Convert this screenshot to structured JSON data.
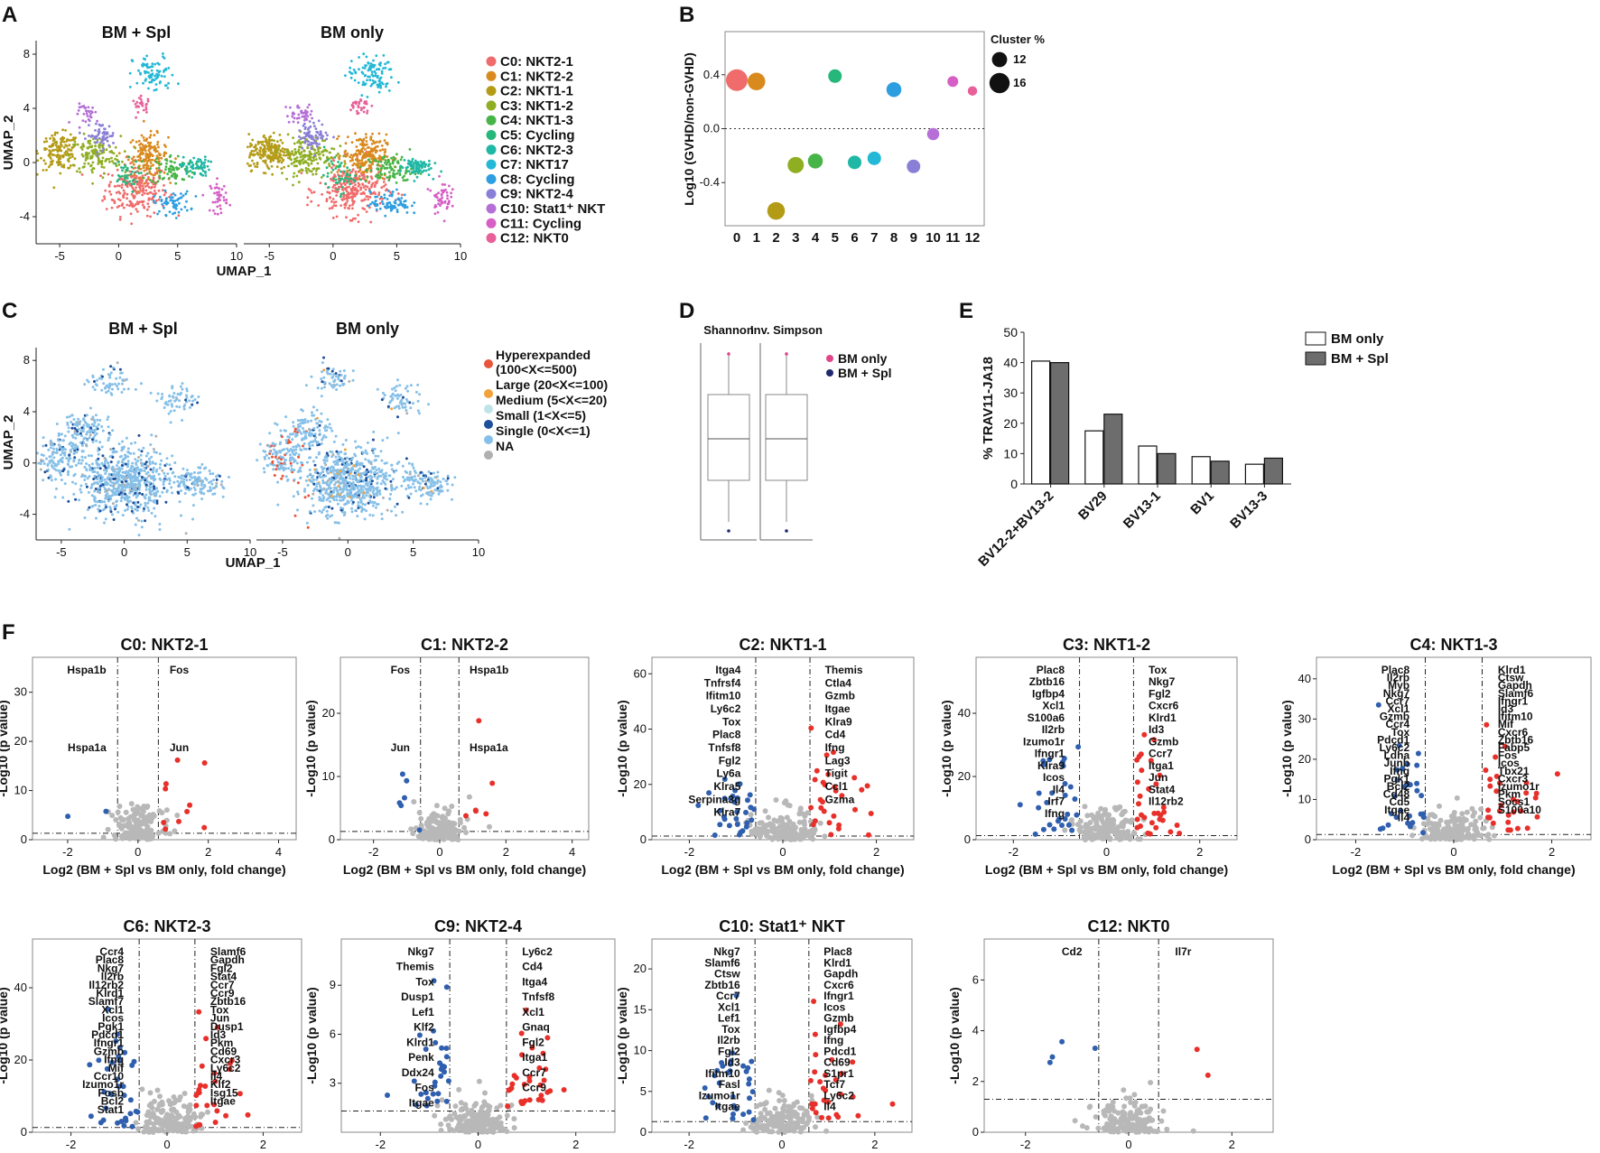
{
  "figure": {
    "panel_letters": [
      "A",
      "B",
      "C",
      "D",
      "E",
      "F"
    ]
  },
  "chart_data": [
    {
      "id": "A",
      "type": "scatter",
      "subtitles": [
        "BM + Spl",
        "BM only"
      ],
      "xlabel": "UMAP_1",
      "ylabel": "UMAP_2",
      "xticks": [
        -5,
        0,
        5,
        10
      ],
      "yticks": [
        8,
        4,
        0,
        -4
      ],
      "xlim": [
        -7,
        10
      ],
      "ylim": [
        -6,
        9
      ],
      "legend": [
        {
          "label": "C0: NKT2-1",
          "color": "#f06b6b"
        },
        {
          "label": "C1: NKT2-2",
          "color": "#d98a1f"
        },
        {
          "label": "C2: NKT1-1",
          "color": "#b49b16"
        },
        {
          "label": "C3: NKT1-2",
          "color": "#8fae22"
        },
        {
          "label": "C4: NKT1-3",
          "color": "#46b446"
        },
        {
          "label": "C5: Cycling",
          "color": "#26b77a"
        },
        {
          "label": "C6: NKT2-3",
          "color": "#1fb7a5"
        },
        {
          "label": "C7: NKT17",
          "color": "#22b8d6"
        },
        {
          "label": "C8: Cycling",
          "color": "#2d9ee0"
        },
        {
          "label": "C9: NKT2-4",
          "color": "#8a7fd6"
        },
        {
          "label": "C10: Stat1⁺ NKT",
          "color": "#b56fd6"
        },
        {
          "label": "C11: Cycling",
          "color": "#d65fc6"
        },
        {
          "label": "C12: NKT0",
          "color": "#e8609a"
        }
      ]
    },
    {
      "id": "B",
      "type": "scatter",
      "ylabel": "Log10 (GVHD/non-GVHD)",
      "categories": [
        "0",
        "1",
        "2",
        "3",
        "4",
        "5",
        "6",
        "7",
        "8",
        "9",
        "10",
        "11",
        "12"
      ],
      "values": [
        0.36,
        0.35,
        -0.61,
        -0.27,
        -0.24,
        0.39,
        -0.25,
        -0.22,
        0.29,
        -0.28,
        -0.04,
        0.35,
        0.28
      ],
      "sizes": [
        16,
        13,
        13,
        12,
        11,
        10,
        10,
        10,
        11,
        10,
        9,
        8,
        7
      ],
      "colors": [
        "#f06b6b",
        "#d98a1f",
        "#b49b16",
        "#8fae22",
        "#46b446",
        "#26b77a",
        "#1fb7a5",
        "#22b8d6",
        "#2d9ee0",
        "#8a7fd6",
        "#b56fd6",
        "#d65fc6",
        "#e8609a"
      ],
      "yticks": [
        0.4,
        0.0,
        -0.4
      ],
      "ylim": [
        -0.72,
        0.72
      ],
      "size_legend_title": "Cluster %",
      "size_legend": [
        12,
        16
      ]
    },
    {
      "id": "C",
      "type": "scatter",
      "subtitles": [
        "BM  + Spl",
        "BM only"
      ],
      "xlabel": "UMAP_1",
      "ylabel": "UMAP_2",
      "xticks": [
        -5,
        0,
        5,
        10
      ],
      "yticks": [
        8,
        4,
        0,
        -4
      ],
      "legend": [
        {
          "label": "Hyperexpanded",
          "sub": "(100<X<=500)",
          "color": "#e8553a"
        },
        {
          "label": "Large (20<X<=100)",
          "color": "#f2a23a"
        },
        {
          "label": "Medium (5<X<=20)",
          "color": "#bfe3e8"
        },
        {
          "label": "Small (1<X<=5)",
          "color": "#1d4f9a"
        },
        {
          "label": "Single (0<X<=1)",
          "color": "#86c0e8"
        },
        {
          "label": "NA",
          "color": "#b0b0b0"
        }
      ]
    },
    {
      "id": "D",
      "type": "box",
      "groups": [
        "Shannon",
        "Inv. Simpson"
      ],
      "legend": [
        {
          "label": "BM only",
          "color": "#e0478a"
        },
        {
          "label": "BM + Spl",
          "color": "#1f2a6e"
        }
      ]
    },
    {
      "id": "E",
      "type": "bar",
      "ylabel": "% TRAV11-JA18",
      "categories": [
        "BV12-2+BV13-2",
        "BV29",
        "BV13-1",
        "BV1",
        "BV13-3"
      ],
      "series": [
        {
          "name": "BM only",
          "values": [
            40.5,
            17.5,
            12.5,
            9.0,
            6.5
          ],
          "color": "#ffffff"
        },
        {
          "name": "BM + Spl",
          "values": [
            40,
            23,
            10,
            7.5,
            8.5
          ],
          "color": "#6d6d6d"
        }
      ],
      "yticks": [
        0,
        10,
        20,
        30,
        40,
        50
      ],
      "ylim": [
        0,
        50
      ]
    },
    {
      "id": "F",
      "type": "scatter",
      "xlabel": "Log2 (BM + Spl vs BM only, fold change)",
      "ylabel": "-Log10 (p value)",
      "panels": [
        {
          "title": "C0: NKT2-1",
          "xticks": [
            -2,
            0,
            2,
            4
          ],
          "yticks": [
            0,
            10,
            20,
            30
          ],
          "ymax": 36,
          "labels": [
            "Hspa1b",
            "Fos",
            "Hspa1a",
            "Jun"
          ]
        },
        {
          "title": "C1: NKT2-2",
          "xticks": [
            -2,
            0,
            2,
            4
          ],
          "yticks": [
            0,
            10,
            20
          ],
          "ymax": 28,
          "labels": [
            "Fos",
            "Hspa1b",
            "Jun",
            "Hspa1a"
          ]
        },
        {
          "title": "C2: NKT1-1",
          "xticks": [
            -2,
            0,
            2
          ],
          "yticks": [
            0,
            20,
            40,
            60
          ],
          "ymax": 64,
          "labels": [
            "Itga4",
            "Themis",
            "Tnfrsf4",
            "Ctla4",
            "Ifitm10",
            "Gzmb",
            "Ly6c2",
            "Itgae",
            "Tox",
            "Klra9",
            "Plac8",
            "Cd4",
            "Tnfsf8",
            "Ifng",
            "Fgl2",
            "Lag3",
            "Ly6a",
            "Tigit",
            "Klra5",
            "Ccl1",
            "Serpina3g",
            "Gzma",
            "Klra7"
          ]
        },
        {
          "title": "C3: NKT1-2",
          "xticks": [
            -2,
            0,
            2
          ],
          "yticks": [
            0,
            20,
            40
          ],
          "ymax": 56,
          "labels": [
            "Plac8",
            "Tox",
            "Zbtb16",
            "Nkg7",
            "Igfbp4",
            "Fgl2",
            "Xcl1",
            "Cxcr6",
            "S100a6",
            "Klrd1",
            "Il2rb",
            "Id3",
            "Izumo1r",
            "Gzmb",
            "Ifngr1",
            "Ccr7",
            "Klra9",
            "Itga1",
            "Icos",
            "Jun",
            "Il4",
            "Stat4",
            "Irf7",
            "Il12rb2",
            "Ifng"
          ]
        },
        {
          "title": "C4: NKT1-3",
          "xticks": [
            -2,
            0,
            2
          ],
          "yticks": [
            0,
            10,
            20,
            30,
            40
          ],
          "ymax": 44,
          "labels": [
            "Plac8",
            "Klrd1",
            "Il2rb",
            "Ctsw",
            "Myb",
            "Gapdh",
            "Nkg7",
            "Slamf6",
            "Ccr7",
            "Ifngr1",
            "Xcl1",
            "Id3",
            "Gzmb",
            "Ifitm10",
            "Ccr4",
            "Mif",
            "Tox",
            "Cxcr6",
            "Pdcd1",
            "Zbtb16",
            "Ly6c2",
            "Fabp5",
            "Ldha",
            "Fos",
            "Junb",
            "Icos",
            "Ifng",
            "Tbx21",
            "Pgk1",
            "Cxcr3",
            "Bcl2",
            "Izumo1r",
            "Cd48",
            "Pkm",
            "Cd5",
            "Socs1",
            "Itgae",
            "S100a10",
            "Il4"
          ]
        },
        {
          "title": "C6: NKT2-3",
          "xticks": [
            -2,
            0,
            2
          ],
          "yticks": [
            0,
            20,
            40
          ],
          "ymax": 52,
          "labels": [
            "Ccr4",
            "Slamf6",
            "Plac8",
            "Gapdh",
            "Nkg7",
            "Fgl2",
            "Il2rb",
            "Stat4",
            "Il12rb2",
            "Ccr7",
            "Klrd1",
            "Ccr9",
            "Slamf7",
            "Zbtb16",
            "Xcl1",
            "Tox",
            "Icos",
            "Jun",
            "Pgk1",
            "Dusp1",
            "Pdcd1",
            "Id3",
            "Ifngr1",
            "Pkm",
            "Gzmb",
            "Cd69",
            "Ifng",
            "Cxcr3",
            "Mif",
            "Ly6c2",
            "Ccr10",
            "Il4",
            "Izumo1r",
            "Klf2",
            "Fosb",
            "Isg15",
            "Bcl2",
            "Itgae",
            "Stat1"
          ]
        },
        {
          "title": "C9: NKT2-4",
          "xticks": [
            -2,
            0,
            2
          ],
          "yticks": [
            3,
            6,
            9
          ],
          "ymax": 11.5,
          "labels": [
            "Nkg7",
            "Ly6c2",
            "Themis",
            "Cd4",
            "Tox",
            "Itga4",
            "Dusp1",
            "Tnfsf8",
            "Lef1",
            "Xcl1",
            "Klf2",
            "Gnaq",
            "Klrd1",
            "Fgl2",
            "Penk",
            "Itga1",
            "Ddx24",
            "Ccr7",
            "Fos",
            "Ccr9",
            "Itgae"
          ]
        },
        {
          "title": "C10: Stat1⁺ NKT",
          "xticks": [
            -2,
            0,
            2
          ],
          "yticks": [
            0,
            5,
            10,
            15,
            20
          ],
          "ymax": 23,
          "labels": [
            "Nkg7",
            "Plac8",
            "Slamf6",
            "Klrd1",
            "Ctsw",
            "Gapdh",
            "Zbtb16",
            "Cxcr6",
            "Ccr7",
            "Ifngr1",
            "Xcl1",
            "Icos",
            "Lef1",
            "Gzmb",
            "Tox",
            "Igfbp4",
            "Il2rb",
            "Ifng",
            "Fgl2",
            "Pdcd1",
            "Id3",
            "Cd69",
            "Ifitm10",
            "S1pr1",
            "Fasl",
            "Tcf7",
            "Izumo1r",
            "Ly6c2",
            "Itgae",
            "Il4"
          ]
        },
        {
          "title": "C12: NKT0",
          "xticks": [
            -2,
            0,
            2
          ],
          "yticks": [
            0,
            2,
            4,
            6
          ],
          "ymax": 7.4,
          "labels": [
            "Cd2",
            "Il7r"
          ]
        }
      ]
    }
  ]
}
